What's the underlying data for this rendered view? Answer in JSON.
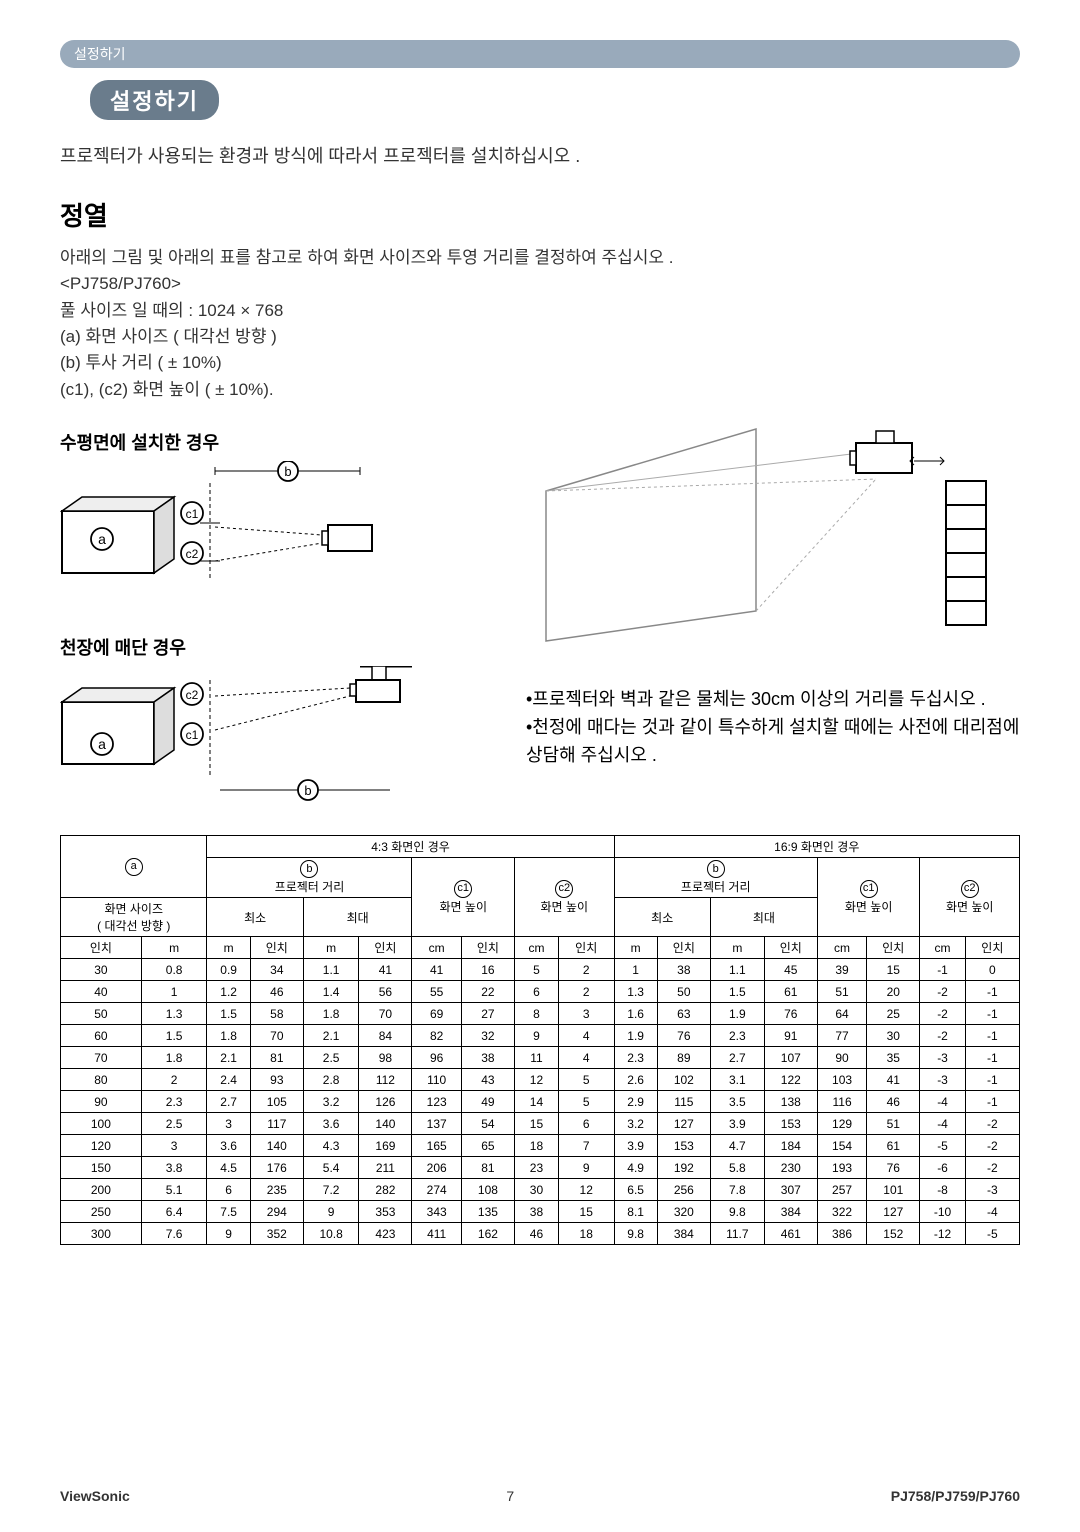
{
  "header_small": "설정하기",
  "header_title": "설정하기",
  "intro": "프로젝터가 사용되는 환경과 방식에 따라서 프로젝터를 설치하십시오 .",
  "section_title": "정열",
  "para_lines": [
    "아래의 그림 및 아래의 표를 참고로 하여 화면 사이즈와 투영 거리를 결정하여 주십시오 .",
    "<PJ758/PJ760>",
    "풀 사이즈 일 때의 : 1024 × 768",
    "(a) 화면 사이즈 ( 대각선 방향 )",
    "(b) 투사 거리 ( ± 10%)",
    "(c1), (c2) 화면 높이 ( ± 10%)."
  ],
  "sub1": "수평면에 설치한 경우",
  "sub2": "천장에 매단 경우",
  "notes": [
    "•프로젝터와 벽과 같은 물체는 30cm 이상의 거리를 두십시오 .",
    "•천정에 매다는 것과 같이 특수하게 설치할 때에는 사전에 대리점에 상담해 주십시오 ."
  ],
  "table": {
    "top_left_a": "ⓐ",
    "group43": "4:3 화면인 경우",
    "group169": "16:9 화면인 경우",
    "screen_size": "화면 사이즈",
    "screen_size_sub": "( 대각선 방향 )",
    "b_label": "ⓑ",
    "proj_dist": "프로젝터 거리",
    "c1_label": "ⓒ1",
    "c2_label": "ⓒ2",
    "screen_h": "화면 높이",
    "min": "최소",
    "max": "최대",
    "unit_inch": "인치",
    "unit_m": "m",
    "unit_cm": "cm",
    "rows": [
      [
        30,
        0.8,
        0.9,
        34,
        1.1,
        41,
        41,
        16,
        5,
        2,
        1.0,
        38,
        1.1,
        45,
        39,
        15,
        -1,
        0
      ],
      [
        40,
        1.0,
        1.2,
        46,
        1.4,
        56,
        55,
        22,
        6,
        2,
        1.3,
        50,
        1.5,
        61,
        51,
        20,
        -2,
        -1
      ],
      [
        50,
        1.3,
        1.5,
        58,
        1.8,
        70,
        69,
        27,
        8,
        3,
        1.6,
        63,
        1.9,
        76,
        64,
        25,
        -2,
        -1
      ],
      [
        60,
        1.5,
        1.8,
        70,
        2.1,
        84,
        82,
        32,
        9,
        4,
        1.9,
        76,
        2.3,
        91,
        77,
        30,
        -2,
        -1
      ],
      [
        70,
        1.8,
        2.1,
        81,
        2.5,
        98,
        96,
        38,
        11,
        4,
        2.3,
        89,
        2.7,
        107,
        90,
        35,
        -3,
        -1
      ],
      [
        80,
        2.0,
        2.4,
        93,
        2.8,
        112,
        110,
        43,
        12,
        5,
        2.6,
        102,
        3.1,
        122,
        103,
        41,
        -3,
        -1
      ],
      [
        90,
        2.3,
        2.7,
        105,
        3.2,
        126,
        123,
        49,
        14,
        5,
        2.9,
        115,
        3.5,
        138,
        116,
        46,
        -4,
        -1
      ],
      [
        100,
        2.5,
        3.0,
        117,
        3.6,
        140,
        137,
        54,
        15,
        6,
        3.2,
        127,
        3.9,
        153,
        129,
        51,
        -4,
        -2
      ],
      [
        120,
        3.0,
        3.6,
        140,
        4.3,
        169,
        165,
        65,
        18,
        7,
        3.9,
        153,
        4.7,
        184,
        154,
        61,
        -5,
        -2
      ],
      [
        150,
        3.8,
        4.5,
        176,
        5.4,
        211,
        206,
        81,
        23,
        9,
        4.9,
        192,
        5.8,
        230,
        193,
        76,
        -6,
        -2
      ],
      [
        200,
        5.1,
        6.0,
        235,
        7.2,
        282,
        274,
        108,
        30,
        12,
        6.5,
        256,
        7.8,
        307,
        257,
        101,
        -8,
        -3
      ],
      [
        250,
        6.4,
        7.5,
        294,
        9.0,
        353,
        343,
        135,
        38,
        15,
        8.1,
        320,
        9.8,
        384,
        322,
        127,
        -10,
        -4
      ],
      [
        300,
        7.6,
        9.0,
        352,
        10.8,
        423,
        411,
        162,
        46,
        18,
        9.8,
        384,
        11.7,
        461,
        386,
        152,
        -12,
        -5
      ]
    ]
  },
  "footer_left": "ViewSonic",
  "footer_page": "7",
  "footer_right": "PJ758/PJ759/PJ760"
}
